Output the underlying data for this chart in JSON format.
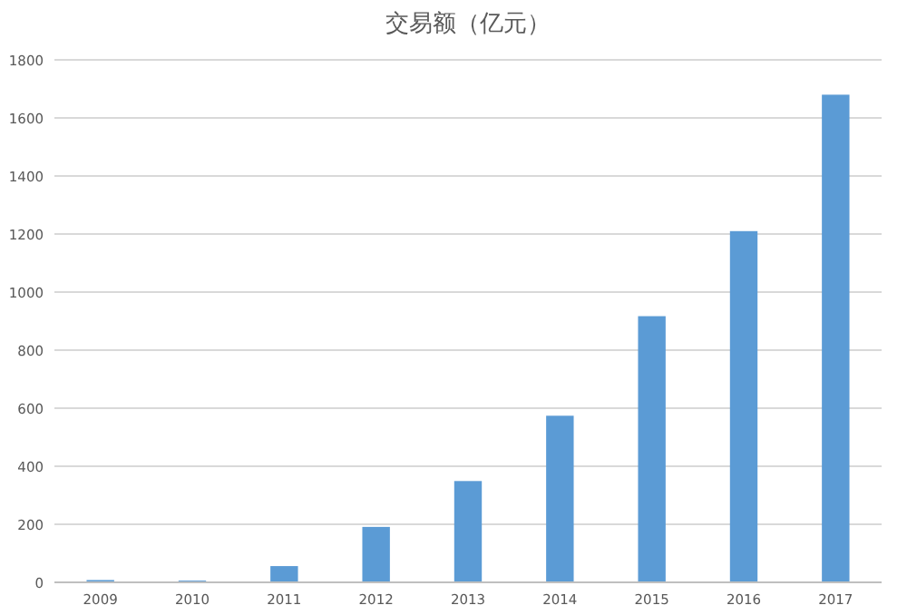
{
  "chart_data": {
    "type": "bar",
    "title": "交易额（亿元）",
    "categories": [
      "2009",
      "2010",
      "2011",
      "2012",
      "2013",
      "2014",
      "2015",
      "2016",
      "2017"
    ],
    "values": [
      8,
      6,
      56,
      191,
      349,
      574,
      917,
      1210,
      1680
    ],
    "color": "#5b9bd5",
    "ylim": [
      0,
      1800
    ],
    "yticks": [
      0,
      200,
      400,
      600,
      800,
      1000,
      1200,
      1400,
      1600,
      1800
    ],
    "grid": "y",
    "legend": false
  }
}
